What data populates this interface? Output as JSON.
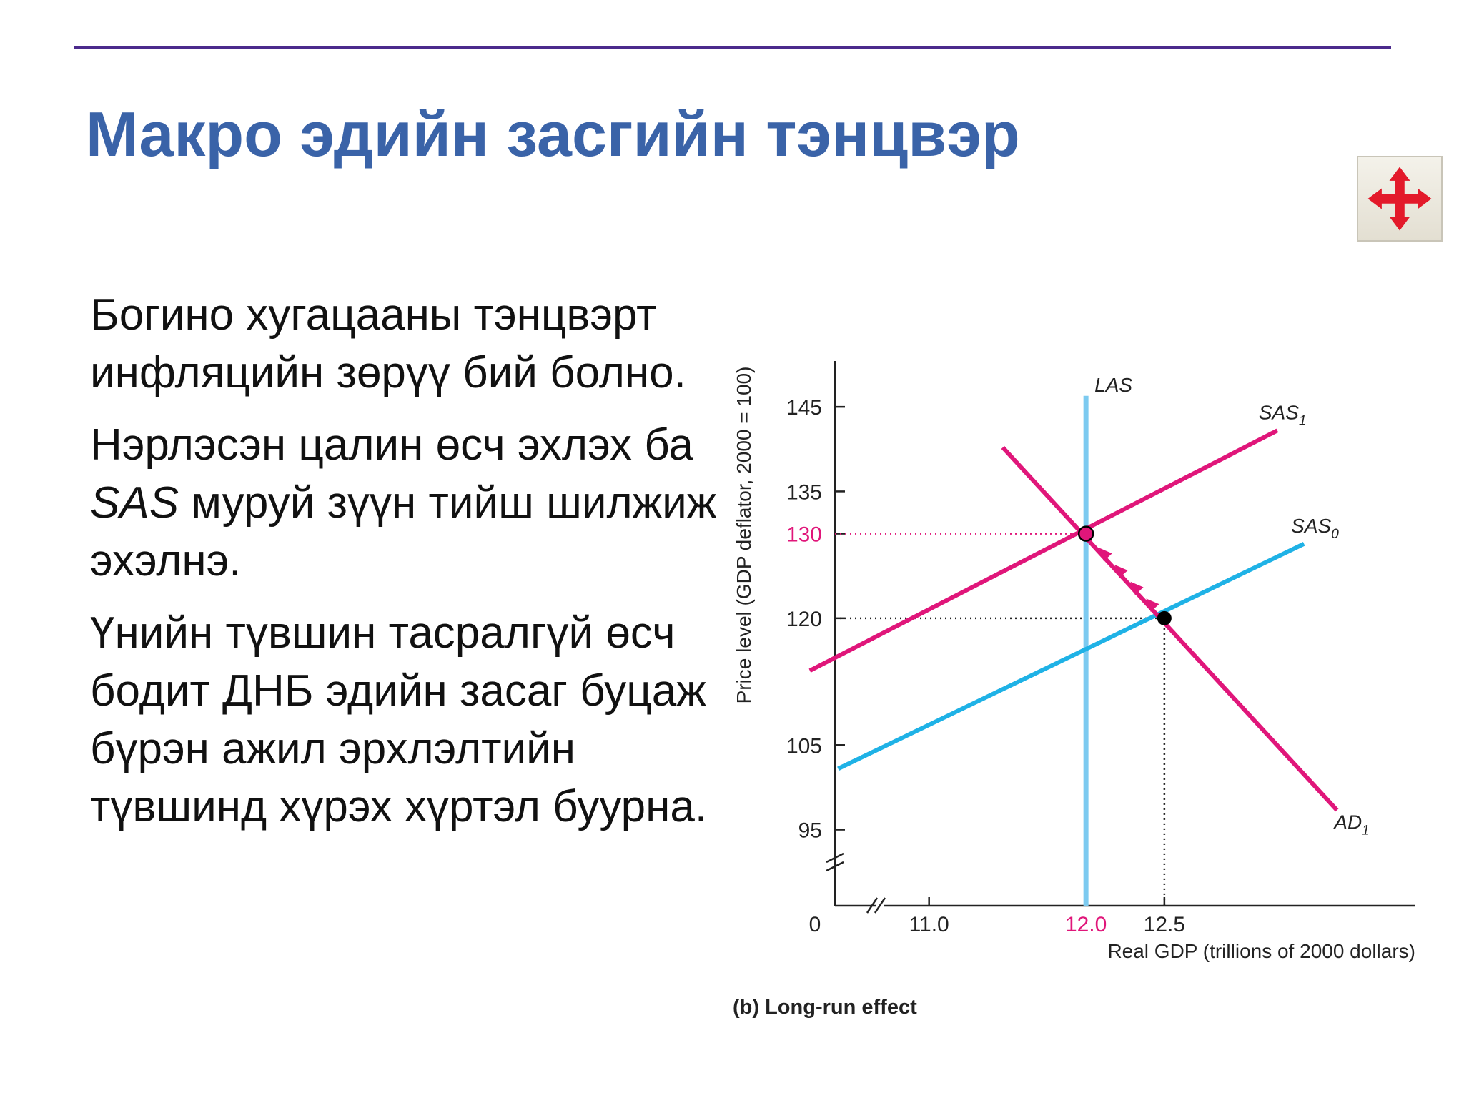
{
  "slide": {
    "title": "Макро эдийн засгийн тэнцвэр",
    "nav_icon": "move-arrows-icon",
    "accent_color": "#3a63a8",
    "rule_color": "#4b2a8c"
  },
  "bullets": [
    {
      "text": "Богино хугацааны тэнцвэрт инфляцийн зөрүү бий болно."
    },
    {
      "pre": "Нэрлэсэн цалин өсч эхлэх ба ",
      "em": "SAS",
      "post": " муруй зүүн тийш шилжиж эхэлнэ."
    },
    {
      "text": "Үнийн түвшин тасралгүй өсч бодит ДНБ эдийн засаг буцаж бүрэн ажил эрхлэлтийн түвшинд хүрэх хүртэл буурна."
    }
  ],
  "chart_data": {
    "type": "line",
    "caption": "(b) Long-run effect",
    "xlabel": "Real GDP (trillions of 2000 dollars)",
    "ylabel": "Price level (GDP deflator, 2000 = 100)",
    "origin_label": "0",
    "x_ticks": [
      "11.0",
      "12.0",
      "12.5"
    ],
    "y_ticks": [
      "95",
      "105",
      "120",
      "130",
      "135",
      "145"
    ],
    "xlim": [
      10.4,
      14.1
    ],
    "ylim": [
      86,
      150
    ],
    "axis_breaks": true,
    "grid": false,
    "series": [
      {
        "name": "LAS",
        "sub": "",
        "color": "#7ccaf0",
        "x": [
          12.0,
          12.0
        ],
        "y": [
          146.3,
          86
        ]
      },
      {
        "name": "SAS",
        "sub": "1",
        "color": "#e0167a",
        "x": [
          10.24,
          13.22
        ],
        "y": [
          113.8,
          142.2
        ]
      },
      {
        "name": "SAS",
        "sub": "0",
        "color": "#1fb2e6",
        "x": [
          10.42,
          13.39
        ],
        "y": [
          102.2,
          128.8
        ]
      },
      {
        "name": "AD",
        "sub": "1",
        "color": "#e0167a",
        "x": [
          11.47,
          13.6
        ],
        "y": [
          140.2,
          97.3
        ]
      }
    ],
    "equilibria": [
      {
        "x": 12.0,
        "y": 130,
        "color": "#e0167a"
      },
      {
        "x": 12.5,
        "y": 120,
        "color": "#000000"
      }
    ],
    "highlight_color": "#e0167a"
  }
}
